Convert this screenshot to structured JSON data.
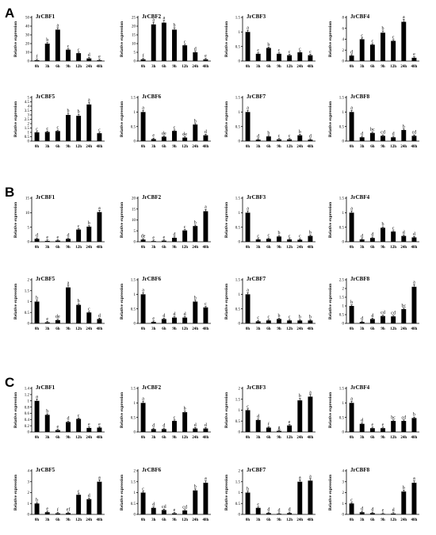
{
  "panels": [
    "A",
    "B",
    "C"
  ],
  "ylabel": "Relative expression",
  "x": [
    "0h",
    "3h",
    "6h",
    "9h",
    "12h",
    "24h",
    "48h"
  ],
  "chart_data": [
    {
      "panel": "A",
      "type": "bar",
      "title": "JrCBF1",
      "categories": [
        "0h",
        "3h",
        "6h",
        "9h",
        "12h",
        "24h",
        "48h"
      ],
      "values": [
        1,
        20,
        36,
        13,
        9,
        3,
        1
      ],
      "letters": [
        "f",
        "b",
        "a",
        "c",
        "c",
        "d",
        "e"
      ],
      "ylim": [
        0,
        50
      ],
      "yticks": [
        0,
        10,
        20,
        30,
        40,
        50
      ]
    },
    {
      "panel": "A",
      "type": "bar",
      "title": "JrCBF2",
      "categories": [
        "0h",
        "3h",
        "6h",
        "9h",
        "12h",
        "24h",
        "48h"
      ],
      "values": [
        1,
        21,
        22,
        18,
        9,
        5,
        1
      ],
      "letters": [
        "f",
        "a",
        "a",
        "b",
        "c",
        "d",
        "e"
      ],
      "ylim": [
        0,
        25
      ],
      "yticks": [
        0,
        5,
        10,
        15,
        20,
        25
      ]
    },
    {
      "panel": "A",
      "type": "bar",
      "title": "JrCBF3",
      "categories": [
        "0h",
        "3h",
        "6h",
        "9h",
        "12h",
        "24h",
        "48h"
      ],
      "values": [
        1,
        0.25,
        0.45,
        0.25,
        0.2,
        0.3,
        0.2
      ],
      "letters": [
        "a",
        "c",
        "b",
        "c",
        "c",
        "c",
        "c"
      ],
      "ylim": [
        0,
        1.5
      ],
      "yticks": [
        0,
        0.5,
        1.0,
        1.5
      ]
    },
    {
      "panel": "A",
      "type": "bar",
      "title": "JrCBF4",
      "categories": [
        "0h",
        "3h",
        "6h",
        "9h",
        "12h",
        "24h",
        "48h"
      ],
      "values": [
        1,
        4,
        3,
        5.2,
        3.7,
        7.2,
        0.6
      ],
      "letters": [
        "d",
        "c",
        "c",
        "b",
        "c",
        "a",
        "e"
      ],
      "ylim": [
        0,
        8
      ],
      "yticks": [
        0,
        2,
        4,
        6,
        8
      ]
    },
    {
      "panel": "A",
      "type": "bar",
      "title": "JrCBF5",
      "categories": [
        "0h",
        "3h",
        "6h",
        "9h",
        "12h",
        "24h",
        "48h"
      ],
      "values": [
        1,
        1.05,
        1.15,
        3,
        2.9,
        4.2,
        0.9
      ],
      "letters": [
        "c",
        "c",
        "c",
        "b",
        "b",
        "a",
        "c"
      ],
      "ylim": [
        0,
        5
      ],
      "yticks": [
        0,
        0.5,
        1,
        1.5,
        2,
        2.5,
        3,
        3.5,
        4,
        4.5,
        5
      ]
    },
    {
      "panel": "A",
      "type": "bar",
      "title": "JrCBF6",
      "categories": [
        "0h",
        "3h",
        "6h",
        "9h",
        "12h",
        "24h",
        "48h"
      ],
      "values": [
        1,
        0.07,
        0.15,
        0.35,
        0.12,
        0.57,
        0.2
      ],
      "letters": [
        "a",
        "e",
        "de",
        "c",
        "de",
        "b",
        "d"
      ],
      "ylim": [
        0,
        1.5
      ],
      "yticks": [
        0,
        0.5,
        1.0,
        1.5
      ]
    },
    {
      "panel": "A",
      "type": "bar",
      "title": "JrCBF7",
      "categories": [
        "0h",
        "3h",
        "6h",
        "9h",
        "12h",
        "24h",
        "48h"
      ],
      "values": [
        1,
        0.05,
        0.16,
        0.06,
        0.06,
        0.2,
        0.05
      ],
      "letters": [
        "a",
        "d",
        "b",
        "c",
        "c",
        "b",
        "d"
      ],
      "ylim": [
        0,
        1.5
      ],
      "yticks": [
        0,
        0.5,
        1.0,
        1.5
      ]
    },
    {
      "panel": "A",
      "type": "bar",
      "title": "JrCBF8",
      "categories": [
        "0h",
        "3h",
        "6h",
        "9h",
        "12h",
        "24h",
        "48h"
      ],
      "values": [
        1,
        0.13,
        0.28,
        0.18,
        0.13,
        0.38,
        0.18
      ],
      "letters": [
        "a",
        "d",
        "bc",
        "cd",
        "d",
        "b",
        "cd"
      ],
      "ylim": [
        0,
        1.5
      ],
      "yticks": [
        0,
        0.5,
        1.0,
        1.5
      ]
    },
    {
      "panel": "B",
      "type": "bar",
      "title": "JrCBF1",
      "categories": [
        "0h",
        "3h",
        "6h",
        "9h",
        "12h",
        "24h",
        "48h"
      ],
      "values": [
        1,
        0.3,
        0.4,
        1,
        4.2,
        5.2,
        10.2
      ],
      "letters": [
        "d",
        "e",
        "e",
        "d",
        "c",
        "b",
        "a"
      ],
      "ylim": [
        0,
        15
      ],
      "yticks": [
        0,
        5,
        10,
        15
      ]
    },
    {
      "panel": "B",
      "type": "bar",
      "title": "JrCBF2",
      "categories": [
        "0h",
        "3h",
        "6h",
        "9h",
        "12h",
        "24h",
        "48h"
      ],
      "values": [
        1,
        0.3,
        0.5,
        1.8,
        5.2,
        7.2,
        14
      ],
      "letters": [
        "de",
        "e",
        "e",
        "d",
        "c",
        "b",
        "a"
      ],
      "ylim": [
        0,
        20
      ],
      "yticks": [
        0,
        5,
        10,
        15,
        20
      ]
    },
    {
      "panel": "B",
      "type": "bar",
      "title": "JrCBF3",
      "categories": [
        "0h",
        "3h",
        "6h",
        "9h",
        "12h",
        "24h",
        "48h"
      ],
      "values": [
        1,
        0.08,
        0.1,
        0.18,
        0.08,
        0.07,
        0.2
      ],
      "letters": [
        "a",
        "c",
        "c",
        "b",
        "c",
        "c",
        "b"
      ],
      "ylim": [
        0,
        1.5
      ],
      "yticks": [
        0,
        0.5,
        1.0,
        1.5
      ]
    },
    {
      "panel": "B",
      "type": "bar",
      "title": "JrCBF4",
      "categories": [
        "0h",
        "3h",
        "6h",
        "9h",
        "12h",
        "24h",
        "48h"
      ],
      "values": [
        1,
        0.08,
        0.13,
        0.48,
        0.35,
        0.2,
        0.15
      ],
      "letters": [
        "a",
        "d",
        "d",
        "b",
        "c",
        "d",
        "d"
      ],
      "ylim": [
        0,
        1.5
      ],
      "yticks": [
        0,
        0.5,
        1.0,
        1.5
      ]
    },
    {
      "panel": "B",
      "type": "bar",
      "title": "JrCBF5",
      "categories": [
        "0h",
        "3h",
        "6h",
        "9h",
        "12h",
        "24h",
        "48h"
      ],
      "values": [
        1,
        0.05,
        0.15,
        1.65,
        0.85,
        0.5,
        0.2
      ],
      "letters": [
        "b",
        "e",
        "de",
        "a",
        "b",
        "c",
        "d"
      ],
      "ylim": [
        0,
        2
      ],
      "yticks": [
        0,
        0.5,
        1.0,
        1.5,
        2.0
      ]
    },
    {
      "panel": "B",
      "type": "bar",
      "title": "JrCBF6",
      "categories": [
        "0h",
        "3h",
        "6h",
        "9h",
        "12h",
        "24h",
        "48h"
      ],
      "values": [
        1,
        0.05,
        0.15,
        0.2,
        0.2,
        0.75,
        0.55
      ],
      "letters": [
        "a",
        "e",
        "d",
        "d",
        "d",
        "b",
        "c"
      ],
      "ylim": [
        0,
        1.5
      ],
      "yticks": [
        0,
        0.5,
        1.0,
        1.5
      ]
    },
    {
      "panel": "B",
      "type": "bar",
      "title": "JrCBF7",
      "categories": [
        "0h",
        "3h",
        "6h",
        "9h",
        "12h",
        "24h",
        "48h"
      ],
      "values": [
        1,
        0.07,
        0.1,
        0.15,
        0.1,
        0.1,
        0.1
      ],
      "letters": [
        "a",
        "c",
        "c",
        "b",
        "c",
        "b",
        "b"
      ],
      "ylim": [
        0,
        1.5
      ],
      "yticks": [
        0,
        0.5,
        1.0,
        1.5
      ]
    },
    {
      "panel": "B",
      "type": "bar",
      "title": "JrCBF8",
      "categories": [
        "0h",
        "3h",
        "6h",
        "9h",
        "12h",
        "24h",
        "48h"
      ],
      "values": [
        1,
        0.08,
        0.25,
        0.42,
        0.4,
        0.82,
        2.1
      ],
      "letters": [
        "b",
        "d",
        "d",
        "cd",
        "cd",
        "bc",
        "a"
      ],
      "ylim": [
        0,
        2.5
      ],
      "yticks": [
        0,
        0.5,
        1.0,
        1.5,
        2.0,
        2.5
      ]
    },
    {
      "panel": "C",
      "type": "bar",
      "title": "JrCBF1",
      "categories": [
        "0h",
        "3h",
        "6h",
        "9h",
        "12h",
        "24h",
        "48h"
      ],
      "values": [
        1,
        0.55,
        0.06,
        0.32,
        0.42,
        0.13,
        0.14
      ],
      "letters": [
        "a",
        "b",
        "e",
        "d",
        "c",
        "e",
        "e"
      ],
      "ylim": [
        0,
        1.4
      ],
      "yticks": [
        0,
        0.2,
        0.4,
        0.6,
        0.8,
        1.0,
        1.2,
        1.4
      ]
    },
    {
      "panel": "C",
      "type": "bar",
      "title": "JrCBF2",
      "categories": [
        "0h",
        "3h",
        "6h",
        "9h",
        "12h",
        "24h",
        "48h"
      ],
      "values": [
        1,
        0.1,
        0.1,
        0.38,
        0.68,
        0.12,
        0.12
      ],
      "letters": [
        "a",
        "d",
        "d",
        "c",
        "b",
        "d",
        "d"
      ],
      "ylim": [
        0,
        1.5
      ],
      "yticks": [
        0,
        0.5,
        1.0,
        1.5
      ]
    },
    {
      "panel": "C",
      "type": "bar",
      "title": "JrCBF3",
      "categories": [
        "0h",
        "3h",
        "6h",
        "9h",
        "12h",
        "24h",
        "48h"
      ],
      "values": [
        1,
        0.55,
        0.2,
        0.05,
        0.3,
        1.45,
        1.62
      ],
      "letters": [
        "c",
        "d",
        "f",
        "g",
        "e",
        "b",
        "a"
      ],
      "ylim": [
        0,
        2
      ],
      "yticks": [
        0,
        0.5,
        1.0,
        1.5,
        2.0
      ]
    },
    {
      "panel": "C",
      "type": "bar",
      "title": "JrCBF4",
      "categories": [
        "0h",
        "3h",
        "6h",
        "9h",
        "12h",
        "24h",
        "48h"
      ],
      "values": [
        1,
        0.28,
        0.13,
        0.13,
        0.38,
        0.38,
        0.48
      ],
      "letters": [
        "a",
        "d",
        "e",
        "e",
        "bc",
        "cd",
        "b"
      ],
      "ylim": [
        0,
        1.5
      ],
      "yticks": [
        0,
        0.5,
        1.0,
        1.5
      ]
    },
    {
      "panel": "C",
      "type": "bar",
      "title": "JrCBF5",
      "categories": [
        "0h",
        "3h",
        "6h",
        "9h",
        "12h",
        "24h",
        "48h"
      ],
      "values": [
        1,
        0.2,
        0.1,
        0.12,
        1.8,
        1.4,
        3
      ],
      "letters": [
        "b",
        "e",
        "f",
        "ef",
        "c",
        "d",
        "a"
      ],
      "ylim": [
        0,
        4
      ],
      "yticks": [
        0,
        1,
        2,
        3,
        4
      ]
    },
    {
      "panel": "C",
      "type": "bar",
      "title": "JrCBF6",
      "categories": [
        "0h",
        "3h",
        "6h",
        "9h",
        "12h",
        "24h",
        "48h"
      ],
      "values": [
        1,
        0.3,
        0.2,
        0.05,
        0.18,
        1.1,
        1.45
      ],
      "letters": [
        "c",
        "d",
        "cd",
        "e",
        "cd",
        "b",
        "a"
      ],
      "ylim": [
        0,
        2
      ],
      "yticks": [
        0,
        0.5,
        1.0,
        1.5,
        2.0
      ]
    },
    {
      "panel": "C",
      "type": "bar",
      "title": "JrCBF7",
      "categories": [
        "0h",
        "3h",
        "6h",
        "9h",
        "12h",
        "24h",
        "48h"
      ],
      "values": [
        1,
        0.3,
        0.06,
        0.03,
        0.06,
        1.5,
        1.55
      ],
      "letters": [
        "b",
        "c",
        "d",
        "d",
        "d",
        "a",
        "a"
      ],
      "ylim": [
        0,
        2
      ],
      "yticks": [
        0,
        0.5,
        1.0,
        1.5,
        2.0
      ]
    },
    {
      "panel": "C",
      "type": "bar",
      "title": "JrCBF8",
      "categories": [
        "0h",
        "3h",
        "6h",
        "9h",
        "12h",
        "24h",
        "48h"
      ],
      "values": [
        1,
        0.2,
        0.12,
        0.05,
        0.08,
        2.1,
        2.9
      ],
      "letters": [
        "c",
        "d",
        "d",
        "e",
        "d",
        "b",
        "a"
      ],
      "ylim": [
        0,
        4
      ],
      "yticks": [
        0,
        1,
        2,
        3,
        4
      ]
    }
  ]
}
